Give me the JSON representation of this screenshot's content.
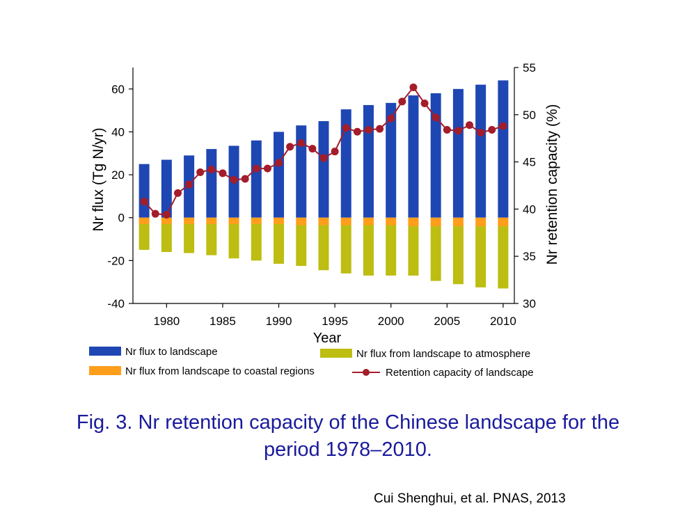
{
  "chart_data": {
    "type": "bar",
    "title": "",
    "xlabel": "Year",
    "ylabel": "Nr flux (Tg N/yr)",
    "ylabel_right": "Nr retention capacity (%)",
    "ylim": [
      -40,
      70
    ],
    "ylim_right": [
      30,
      55
    ],
    "yticks": [
      "60",
      "40",
      "20",
      "0",
      "-20",
      "-40"
    ],
    "yticks_right": [
      "55",
      "50",
      "45",
      "40",
      "35",
      "30"
    ],
    "xticks": [
      "1980",
      "1985",
      "1990",
      "1995",
      "2000",
      "2005",
      "2010"
    ],
    "x": [
      1978,
      1980,
      1982,
      1984,
      1986,
      1988,
      1990,
      1992,
      1994,
      1996,
      1998,
      2000,
      2002,
      2004,
      2006,
      2008,
      2010
    ],
    "series": [
      {
        "name": "Nr flux to landscape",
        "color": "#1f47b3",
        "values": [
          25,
          27,
          29,
          32,
          33.5,
          36,
          40,
          43,
          45,
          50.5,
          52.5,
          53.5,
          57,
          58,
          60,
          62,
          64
        ]
      },
      {
        "name": "Nr flux from landscape to coastal regions",
        "color": "#ff9e1b",
        "values": [
          -3,
          -3,
          -3,
          -3,
          -3,
          -3,
          -3,
          -3.5,
          -3.5,
          -3.5,
          -3.5,
          -3.5,
          -4,
          -4,
          -4,
          -4,
          -4
        ]
      },
      {
        "name": "Nr flux from landscape to atmosphere",
        "color": "#bdbd12",
        "values": [
          -12,
          -13,
          -13.5,
          -14.5,
          -16,
          -17,
          -18.5,
          -19,
          -21,
          -22.5,
          -23.5,
          -23.5,
          -23,
          -25.5,
          -27,
          -28.5,
          -29
        ]
      },
      {
        "name": "Retention capacity of landscape",
        "color": "#a31d2a",
        "axis": "right",
        "x": [
          1978,
          1979,
          1980,
          1981,
          1982,
          1983,
          1984,
          1985,
          1986,
          1987,
          1988,
          1989,
          1990,
          1991,
          1992,
          1993,
          1994,
          1995,
          1996,
          1997,
          1998,
          1999,
          2000,
          2001,
          2002,
          2003,
          2004,
          2005,
          2006,
          2007,
          2008,
          2009,
          2010
        ],
        "values": [
          40.8,
          39.5,
          39.4,
          41.7,
          42.6,
          43.9,
          44.2,
          43.8,
          43.1,
          43.2,
          44.3,
          44.3,
          44.9,
          46.6,
          47,
          46.4,
          45.4,
          46.1,
          48.6,
          48.2,
          48.4,
          48.5,
          49.6,
          51.4,
          52.9,
          51.2,
          49.7,
          48.4,
          48.3,
          48.9,
          48.1,
          48.4,
          48.8
        ]
      }
    ]
  },
  "caption": {
    "line1": "Fig. 3. Nr retention capacity of the Chinese landscape for the",
    "line2": "period 1978–2010."
  },
  "citation": "Cui Shenghui, et al. PNAS, 2013"
}
